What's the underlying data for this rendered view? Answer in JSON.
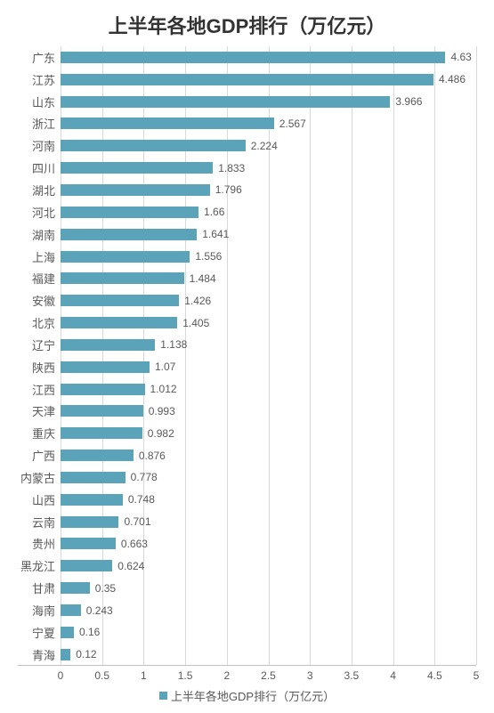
{
  "chart": {
    "type": "bar-horizontal",
    "title": "上半年各地GDP排行（万亿元）",
    "title_fontsize": 22,
    "title_color": "#333333",
    "categories": [
      "广东",
      "江苏",
      "山东",
      "浙江",
      "河南",
      "四川",
      "湖北",
      "河北",
      "湖南",
      "上海",
      "福建",
      "安徽",
      "北京",
      "辽宁",
      "陕西",
      "江西",
      "天津",
      "重庆",
      "广西",
      "内蒙古",
      "山西",
      "云南",
      "贵州",
      "黑龙江",
      "甘肃",
      "海南",
      "宁夏",
      "青海"
    ],
    "values": [
      4.63,
      4.486,
      3.966,
      2.567,
      2.224,
      1.833,
      1.796,
      1.66,
      1.641,
      1.556,
      1.484,
      1.426,
      1.405,
      1.138,
      1.07,
      1.012,
      0.993,
      0.982,
      0.876,
      0.778,
      0.748,
      0.701,
      0.663,
      0.624,
      0.35,
      0.243,
      0.16,
      0.12
    ],
    "bar_color": "#5aa3b8",
    "bar_height_ratio": 0.52,
    "value_label_color": "#595959",
    "value_label_fontsize": 12,
    "category_label_color": "#595959",
    "category_label_fontsize": 13,
    "xlim": [
      0,
      5
    ],
    "xtick_step": 0.5,
    "xticks": [
      0,
      0.5,
      1,
      1.5,
      2,
      2.5,
      3,
      3.5,
      4,
      4.5,
      5
    ],
    "grid_color": "#d9d9d9",
    "grid_on": true,
    "axis_line_color": "#bfbfbf",
    "background_color": "#ffffff",
    "legend": {
      "label": "上半年各地GDP排行（万亿元）",
      "swatch_color": "#5aa3b8",
      "position": "bottom-center",
      "fontsize": 13,
      "text_color": "#595959"
    }
  }
}
